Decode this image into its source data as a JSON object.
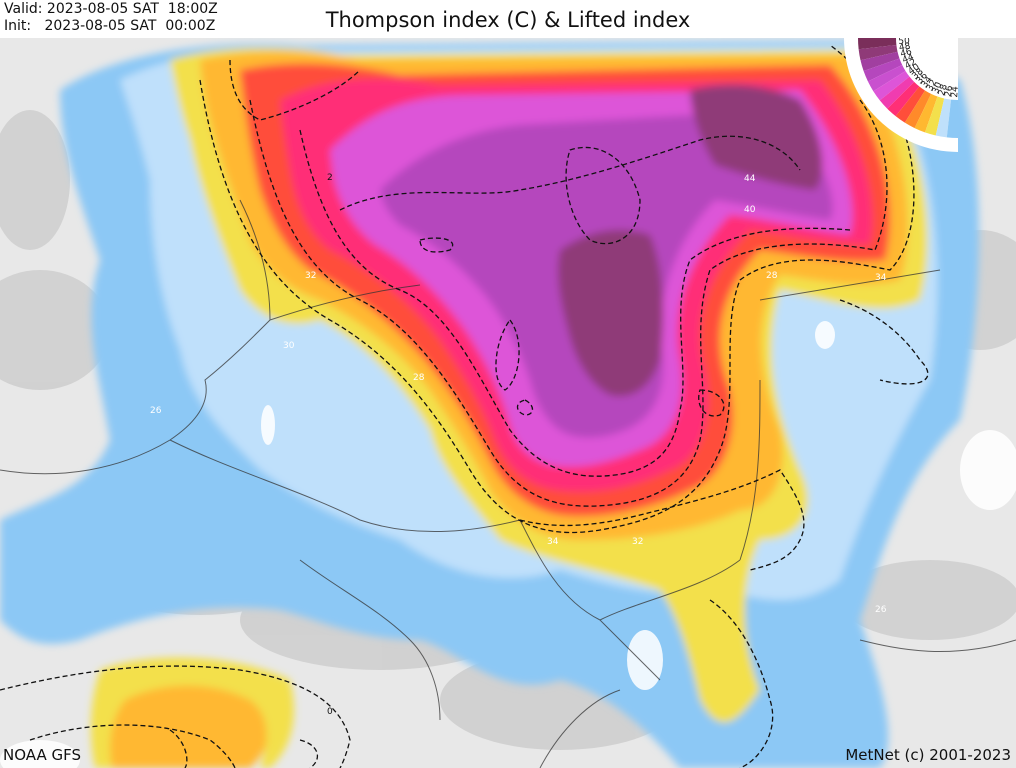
{
  "header": {
    "valid_label": "Valid:",
    "valid_value": "2023-08-05 SAT  18:00Z",
    "init_label": "Init:",
    "init_value": "2023-08-05 SAT  00:00Z",
    "title": "Thompson index (C) & Lifted index"
  },
  "footer": {
    "source": "NOAA GFS",
    "copyright": "MetNet (c) 2001-2023"
  },
  "legend": {
    "labels": [
      "50",
      "48",
      "46",
      "44",
      "42",
      "40",
      "38",
      "36",
      "34",
      "32",
      "30",
      "28",
      "26",
      "24"
    ],
    "colors": [
      "#7a2e5a",
      "#8f3a78",
      "#a13fa0",
      "#b547bd",
      "#c950cf",
      "#dd55d8",
      "#f03cb0",
      "#ff2f77",
      "#ff4e3a",
      "#ff8a2a",
      "#ffb830",
      "#f3e04c",
      "#bfe0fb",
      "#8cc8f5"
    ]
  },
  "contour_labels": [
    {
      "text": "44"
    },
    {
      "text": "40"
    },
    {
      "text": "28"
    },
    {
      "text": "34"
    },
    {
      "text": "32"
    },
    {
      "text": "30"
    },
    {
      "text": "28"
    },
    {
      "text": "26"
    },
    {
      "text": "34"
    },
    {
      "text": "32"
    },
    {
      "text": "26"
    },
    {
      "text": "2"
    },
    {
      "text": "0"
    }
  ]
}
